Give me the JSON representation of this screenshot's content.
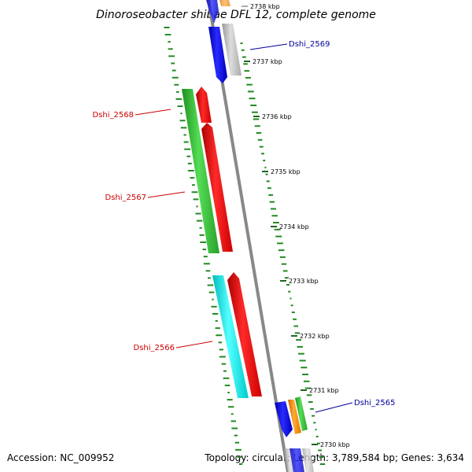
{
  "title": "Dinoroseobacter shibae DFL 12, complete genome",
  "accession": "Accession: NC_009952",
  "topology": "Topology: circular; Length: 3,789,584 bp; Genes: 3,634",
  "colors": {
    "red": "#ff0000",
    "green": "#33cc33",
    "blue": "#0000ee",
    "cyan": "#00eeee",
    "orange": "#ff9900",
    "gray": "#bbbbbb",
    "backbone": "#888888",
    "gc_tick": "#228822",
    "label_red": "#cc0000",
    "label_blue": "#000099"
  },
  "kbp_marks": [
    {
      "label": "2738 kbp",
      "faint": true
    },
    {
      "label": "2737 kbp"
    },
    {
      "label": "2736 kbp"
    },
    {
      "label": "2735 kbp"
    },
    {
      "label": "2734 kbp"
    },
    {
      "label": "2733 kbp"
    },
    {
      "label": "2732 kbp"
    },
    {
      "label": "2731 kbp"
    },
    {
      "label": "2730 kbp"
    }
  ],
  "genes": [
    {
      "name": "Dshi_2569",
      "label_color": "blue"
    },
    {
      "name": "Dshi_2568",
      "label_color": "red"
    },
    {
      "name": "Dshi_2567",
      "label_color": "red"
    },
    {
      "name": "Dshi_2566",
      "label_color": "red"
    },
    {
      "name": "Dshi_2565",
      "label_color": "blue"
    }
  ]
}
